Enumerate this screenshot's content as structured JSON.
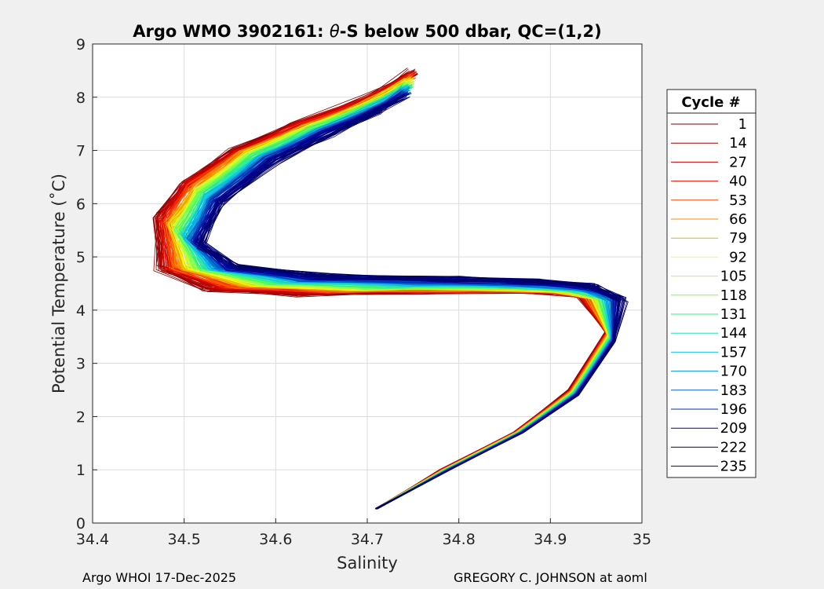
{
  "chart_data": {
    "type": "line",
    "title_prefix": "Argo WMO 3902161: ",
    "title_symbol": "θ",
    "title_suffix": "-S below 500 dbar,  QC=(1,2)",
    "xlabel": "Salinity",
    "ylabel": "Potential Temperature (˚C)",
    "xlim": [
      34.4,
      35.0
    ],
    "ylim": [
      0,
      9
    ],
    "xticks": [
      "34.4",
      "34.5",
      "34.6",
      "34.7",
      "34.8",
      "34.9",
      "35"
    ],
    "yticks": [
      "0",
      "1",
      "2",
      "3",
      "4",
      "5",
      "6",
      "7",
      "8",
      "9"
    ],
    "grid": true,
    "legend": {
      "title": "Cycle #",
      "placement": "right-outside",
      "entries": [
        "1",
        "14",
        "27",
        "40",
        "53",
        "66",
        "79",
        "92",
        "105",
        "118",
        "131",
        "144",
        "157",
        "170",
        "183",
        "196",
        "209",
        "222",
        "235"
      ],
      "colors": [
        "#7f0000",
        "#a00000",
        "#c40000",
        "#e81000",
        "#ff4a00",
        "#ff8a00",
        "#e0b800",
        "#ffff10",
        "#b0ff40",
        "#70ff50",
        "#30f080",
        "#20e0c0",
        "#10c0f0",
        "#0090e0",
        "#0060c8",
        "#0030b0",
        "#0000a0",
        "#000080",
        "#000060"
      ]
    },
    "series_shape": {
      "description": "theta-S profile shape shared by all cycles; later cycles shifted to higher salinity at mid depths",
      "early_cycle": {
        "salinity": [
          34.75,
          34.7,
          34.62,
          34.55,
          34.5,
          34.47,
          34.47,
          34.52,
          34.62,
          34.75,
          34.88,
          34.93,
          34.96,
          34.92,
          34.86,
          34.78,
          34.71
        ],
        "theta": [
          8.5,
          8.0,
          7.5,
          7.0,
          6.4,
          5.8,
          4.8,
          4.4,
          4.3,
          4.35,
          4.35,
          4.3,
          3.6,
          2.5,
          1.7,
          1.0,
          0.27
        ]
      },
      "late_cycle": {
        "salinity": [
          34.74,
          34.71,
          34.66,
          34.6,
          34.54,
          34.52,
          34.56,
          34.66,
          34.8,
          34.9,
          34.95,
          34.98,
          34.97,
          34.93,
          34.87,
          34.79,
          34.71
        ],
        "theta": [
          8.0,
          7.7,
          7.3,
          6.8,
          6.0,
          5.2,
          4.8,
          4.65,
          4.6,
          4.55,
          4.45,
          4.2,
          3.4,
          2.4,
          1.7,
          1.0,
          0.27
        ]
      }
    }
  },
  "footer": {
    "left": "Argo WHOI 17-Dec-2025",
    "right": "GREGORY C. JOHNSON at aoml"
  }
}
